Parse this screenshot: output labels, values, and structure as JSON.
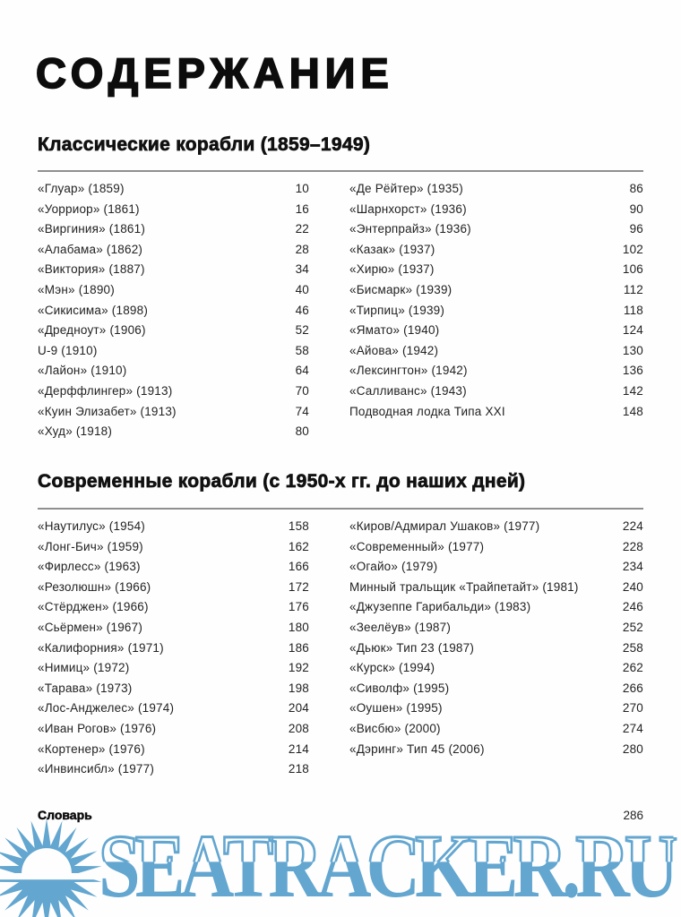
{
  "page": {
    "title": "СОДЕРЖАНИЕ",
    "footer": {
      "label": "Словарь",
      "page": "286"
    }
  },
  "colors": {
    "text": "#1c1c1c",
    "watermark_blue": "#63a6d0",
    "rule_gray": "#8f8f8f"
  },
  "sections": [
    {
      "heading": "Классические корабли (1859–1949)",
      "columns": {
        "left": [
          {
            "title": "«Глуар» (1859)",
            "page": "10"
          },
          {
            "title": "«Уорриор» (1861)",
            "page": "16"
          },
          {
            "title": "«Виргиния» (1861)",
            "page": "22"
          },
          {
            "title": "«Алабама» (1862)",
            "page": "28"
          },
          {
            "title": "«Виктория» (1887)",
            "page": "34"
          },
          {
            "title": "«Мэн» (1890)",
            "page": "40"
          },
          {
            "title": "«Сикисима» (1898)",
            "page": "46"
          },
          {
            "title": "«Дредноут» (1906)",
            "page": "52"
          },
          {
            "title": "U-9 (1910)",
            "page": "58"
          },
          {
            "title": "«Лайон» (1910)",
            "page": "64"
          },
          {
            "title": "«Дерффлингер» (1913)",
            "page": "70"
          },
          {
            "title": "«Куин Элизабет» (1913)",
            "page": "74"
          },
          {
            "title": "«Худ» (1918)",
            "page": "80"
          }
        ],
        "right": [
          {
            "title": "«Де Рёйтер» (1935)",
            "page": "86"
          },
          {
            "title": "«Шарнхорст» (1936)",
            "page": "90"
          },
          {
            "title": "«Энтерпрайз» (1936)",
            "page": "96"
          },
          {
            "title": "«Казак» (1937)",
            "page": "102"
          },
          {
            "title": "«Хирю» (1937)",
            "page": "106"
          },
          {
            "title": "«Бисмарк» (1939)",
            "page": "112"
          },
          {
            "title": "«Тирпиц» (1939)",
            "page": "118"
          },
          {
            "title": "«Ямато» (1940)",
            "page": "124"
          },
          {
            "title": "«Айова» (1942)",
            "page": "130"
          },
          {
            "title": "«Лексингтон» (1942)",
            "page": "136"
          },
          {
            "title": "«Салливанс» (1943)",
            "page": "142"
          },
          {
            "title": "Подводная лодка Типа XXI",
            "page": "148"
          }
        ]
      }
    },
    {
      "heading": "Современные корабли (с 1950-х гг. до наших дней)",
      "columns": {
        "left": [
          {
            "title": "«Наутилус» (1954)",
            "page": "158"
          },
          {
            "title": "«Лонг-Бич» (1959)",
            "page": "162"
          },
          {
            "title": "«Фирлесс» (1963)",
            "page": "166"
          },
          {
            "title": "«Резолюшн» (1966)",
            "page": "172"
          },
          {
            "title": "«Стёрджен» (1966)",
            "page": "176"
          },
          {
            "title": "«Сьёрмен» (1967)",
            "page": "180"
          },
          {
            "title": "«Калифорния» (1971)",
            "page": "186"
          },
          {
            "title": "«Нимиц» (1972)",
            "page": "192"
          },
          {
            "title": "«Тарава» (1973)",
            "page": "198"
          },
          {
            "title": "«Лос-Анджелес» (1974)",
            "page": "204"
          },
          {
            "title": "«Иван Рогов» (1976)",
            "page": "208"
          },
          {
            "title": "«Кортенер» (1976)",
            "page": "214"
          },
          {
            "title": "«Инвинсибл» (1977)",
            "page": "218"
          }
        ],
        "right": [
          {
            "title": "«Киров/Адмирал Ушаков» (1977)",
            "page": "224"
          },
          {
            "title": "«Современный» (1977)",
            "page": "228"
          },
          {
            "title": "«Огайо» (1979)",
            "page": "234"
          },
          {
            "title": "Минный тральщик «Трайпетайт» (1981)",
            "page": "240"
          },
          {
            "title": "«Джузеппе Гарибальди» (1983)",
            "page": "246"
          },
          {
            "title": "«Зеелёув» (1987)",
            "page": "252"
          },
          {
            "title": "«Дьюк» Тип 23 (1987)",
            "page": "258"
          },
          {
            "title": "«Курск» (1994)",
            "page": "262"
          },
          {
            "title": "«Сиволф» (1995)",
            "page": "266"
          },
          {
            "title": "«Оушен» (1995)",
            "page": "270"
          },
          {
            "title": "«Висбю» (2000)",
            "page": "274"
          },
          {
            "title": "«Дэринг» Тип 45 (2006)",
            "page": "280"
          }
        ]
      }
    }
  ],
  "watermark": {
    "text": "SEATRACKER.RU",
    "icon": "sunburst-icon",
    "color": "#63a6d0"
  }
}
